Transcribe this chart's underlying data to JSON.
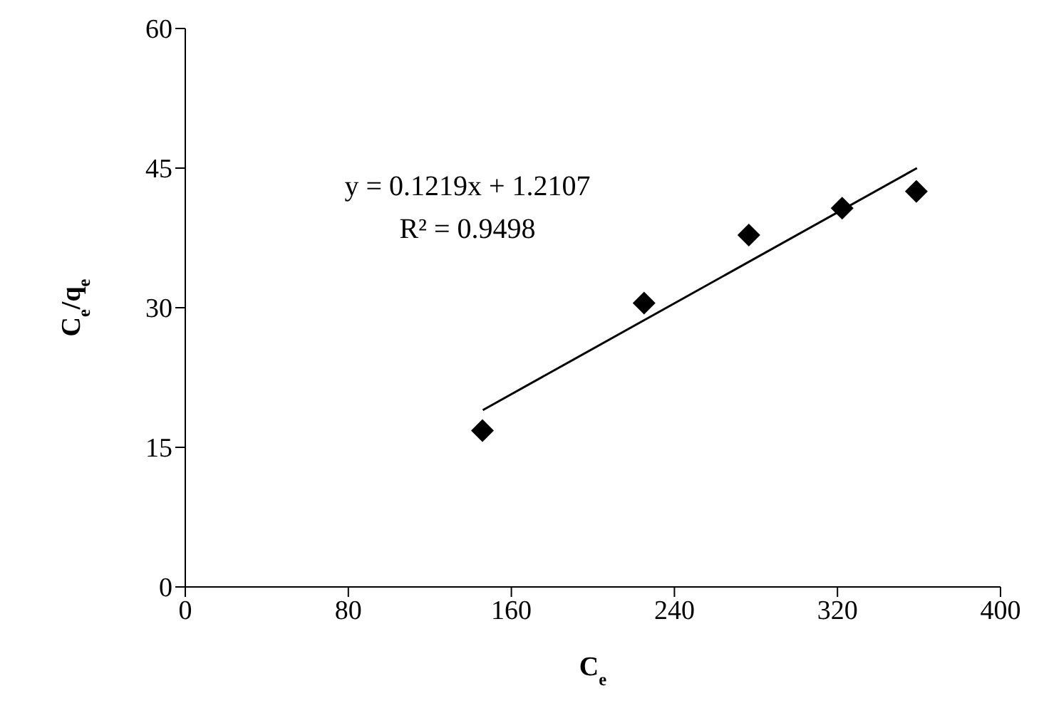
{
  "chart_data": {
    "type": "scatter",
    "xlabel": "C$_{e}$",
    "ylabel": "C$_{e}$/q$_{e}$",
    "x": [
      145.8,
      225.1,
      276.5,
      322.3,
      358.7
    ],
    "series": [
      {
        "color": "#000000",
        "marker": "diamond",
        "values": [
          16.8,
          30.5,
          37.8,
          40.7,
          42.5
        ]
      },
      {
        "type": "line",
        "color": "#000000",
        "marker": "none",
        "x": [
          146,
          359
        ],
        "values": [
          19.0,
          45.0
        ]
      }
    ],
    "xlim": [
      0,
      400
    ],
    "xticks": [
      0,
      80,
      160,
      240,
      320,
      400
    ],
    "ylim": [
      0,
      60
    ],
    "yticks": [
      0,
      15,
      30,
      45,
      60
    ],
    "annotations": [
      "y = 0.1219x + 1.2107",
      "R² = 0.9498"
    ]
  }
}
